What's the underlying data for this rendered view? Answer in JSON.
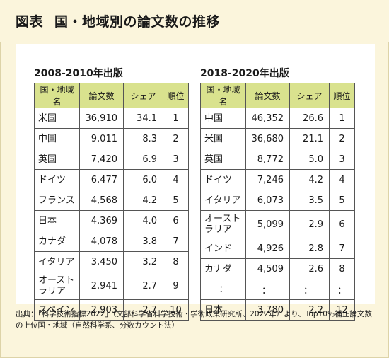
{
  "title": {
    "tag": "図表",
    "text": "国・地域別の論文数の推移"
  },
  "left": {
    "edition": "2008-2010年出版",
    "headers": [
      "国・地域名",
      "論文数",
      "シェア",
      "順位"
    ],
    "rows": [
      {
        "name": [
          "米国"
        ],
        "papers": "36,910",
        "share": "34.1",
        "rank": "1"
      },
      {
        "name": [
          "中国"
        ],
        "papers": "9,011",
        "share": "8.3",
        "rank": "2"
      },
      {
        "name": [
          "英国"
        ],
        "papers": "7,420",
        "share": "6.9",
        "rank": "3"
      },
      {
        "name": [
          "ドイツ"
        ],
        "papers": "6,477",
        "share": "6.0",
        "rank": "4"
      },
      {
        "name": [
          "フランス"
        ],
        "papers": "4,568",
        "share": "4.2",
        "rank": "5"
      },
      {
        "name": [
          "日本"
        ],
        "papers": "4,369",
        "share": "4.0",
        "rank": "6"
      },
      {
        "name": [
          "カナダ"
        ],
        "papers": "4,078",
        "share": "3.8",
        "rank": "7"
      },
      {
        "name": [
          "イタリア"
        ],
        "papers": "3,450",
        "share": "3.2",
        "rank": "8"
      },
      {
        "name": [
          "オースト",
          "ラリア"
        ],
        "papers": "2,941",
        "share": "2.7",
        "rank": "9"
      },
      {
        "name": [
          "スペイン"
        ],
        "papers": "2,903",
        "share": "2.7",
        "rank": "10"
      }
    ]
  },
  "right": {
    "edition": "2018-2020年出版",
    "headers": [
      "国・地域名",
      "論文数",
      "シェア",
      "順位"
    ],
    "rows": [
      {
        "name": [
          "中国"
        ],
        "papers": "46,352",
        "share": "26.6",
        "rank": "1"
      },
      {
        "name": [
          "米国"
        ],
        "papers": "36,680",
        "share": "21.1",
        "rank": "2"
      },
      {
        "name": [
          "英国"
        ],
        "papers": "8,772",
        "share": "5.0",
        "rank": "3"
      },
      {
        "name": [
          "ドイツ"
        ],
        "papers": "7,246",
        "share": "4.2",
        "rank": "4"
      },
      {
        "name": [
          "イタリア"
        ],
        "papers": "6,073",
        "share": "3.5",
        "rank": "5"
      },
      {
        "name": [
          "オースト",
          "ラリア"
        ],
        "papers": "5,099",
        "share": "2.9",
        "rank": "6"
      },
      {
        "name": [
          "インド"
        ],
        "papers": "4,926",
        "share": "2.8",
        "rank": "7"
      },
      {
        "name": [
          "カナダ"
        ],
        "papers": "4,509",
        "share": "2.6",
        "rank": "8"
      },
      {
        "name": [
          "："
        ],
        "papers": "：",
        "share": "：",
        "rank": "："
      },
      {
        "name": [
          "日本"
        ],
        "papers": "3,780",
        "share": "2.2",
        "rank": "12"
      }
    ]
  },
  "note": "出典：「科学技術指標2022」（文部科学省科学技術・学術政策研究所、2022年）より、Top10％補正論文数の上位国・地域（自然科学系、分数カウント法）"
}
